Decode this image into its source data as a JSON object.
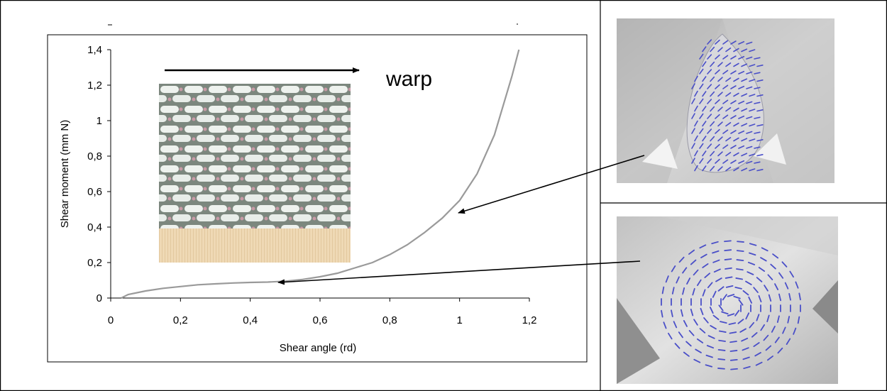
{
  "chart_data": {
    "type": "line",
    "xlabel": "Shear angle (rd)",
    "ylabel": "Shear moment (mm N)",
    "xlim": [
      0,
      1.2
    ],
    "ylim": [
      0,
      1.4
    ],
    "x_ticks": [
      "0",
      "0,2",
      "0,4",
      "0,6",
      "0,8",
      "1",
      "1,2"
    ],
    "y_ticks": [
      "0",
      "0,2",
      "0,4",
      "0,6",
      "0,8",
      "1",
      "1,2",
      "1,4"
    ],
    "grid": false,
    "legend": "none",
    "series": [
      {
        "color": "#9a9a9a",
        "x": [
          0.03,
          0.05,
          0.1,
          0.15,
          0.2,
          0.25,
          0.3,
          0.35,
          0.4,
          0.45,
          0.5,
          0.55,
          0.6,
          0.65,
          0.7,
          0.75,
          0.8,
          0.85,
          0.9,
          0.95,
          1.0,
          1.05,
          1.1,
          1.15,
          1.17
        ],
        "y": [
          0.0,
          0.02,
          0.04,
          0.055,
          0.065,
          0.075,
          0.08,
          0.085,
          0.088,
          0.09,
          0.095,
          0.105,
          0.12,
          0.14,
          0.17,
          0.2,
          0.245,
          0.3,
          0.37,
          0.45,
          0.55,
          0.7,
          0.92,
          1.25,
          1.4
        ]
      }
    ],
    "annotations": [
      {
        "text": "warp",
        "kind": "direction-arrow"
      }
    ]
  },
  "colors": {
    "curve": "#9a9a9a",
    "arrows": "#000000",
    "vectors": "#4a4fc8"
  },
  "images": {
    "inset": "woven-fabric-texture",
    "top_right": "shear-deformation-vector-field",
    "bottom_right": "rotational-vector-field"
  }
}
